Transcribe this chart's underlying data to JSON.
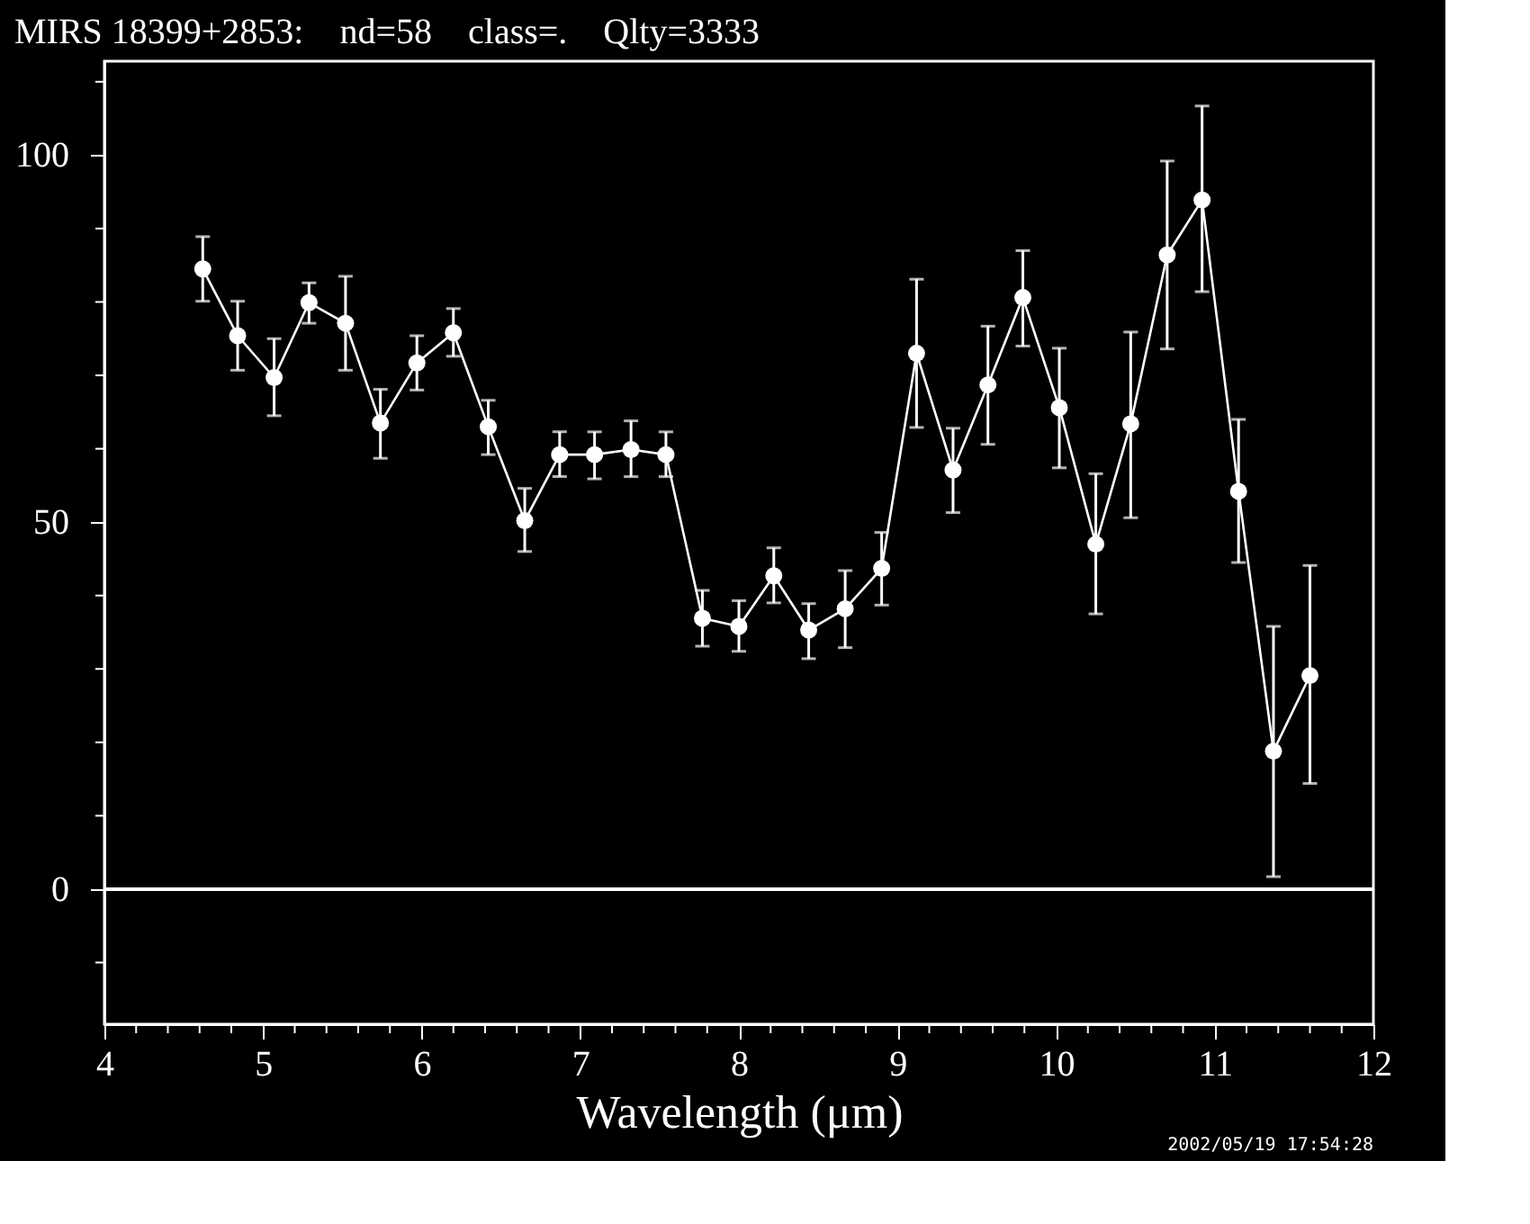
{
  "chart_data": {
    "type": "line",
    "title": "MIRS 18399+2853:    nd=58    class=.    Qlty=3333",
    "xlabel": "Wavelength (μm)",
    "x": [
      4.62,
      4.84,
      5.07,
      5.29,
      5.52,
      5.74,
      5.97,
      6.2,
      6.42,
      6.65,
      6.87,
      7.09,
      7.32,
      7.54,
      7.77,
      8.0,
      8.22,
      8.44,
      8.67,
      8.9,
      9.12,
      9.35,
      9.57,
      9.79,
      10.02,
      10.25,
      10.47,
      10.7,
      10.92,
      11.15,
      11.37,
      11.6
    ],
    "series": [
      {
        "color": "#ffffff",
        "values": [
          84.5,
          75.4,
          69.7,
          79.9,
          77.1,
          63.5,
          71.7,
          75.8,
          63.0,
          50.2,
          59.2,
          59.2,
          59.9,
          59.2,
          36.9,
          35.8,
          42.7,
          35.3,
          38.2,
          43.7,
          73.0,
          57.1,
          68.7,
          80.6,
          65.6,
          47.0,
          63.4,
          86.4,
          93.9,
          54.2,
          18.8,
          29.1
        ],
        "errors": [
          [
            80.1,
            88.9
          ],
          [
            70.7,
            80.1
          ],
          [
            64.5,
            75.0
          ],
          [
            77.1,
            82.6
          ],
          [
            70.7,
            83.5
          ],
          [
            58.7,
            68.1
          ],
          [
            68.0,
            75.4
          ],
          [
            72.6,
            79.1
          ],
          [
            59.2,
            66.6
          ],
          [
            46.0,
            54.6
          ],
          [
            56.2,
            62.3
          ],
          [
            55.9,
            62.3
          ],
          [
            56.2,
            63.8
          ],
          [
            56.2,
            62.3
          ],
          [
            33.1,
            40.7
          ],
          [
            32.4,
            39.3
          ],
          [
            39.0,
            46.5
          ],
          [
            31.4,
            38.9
          ],
          [
            32.9,
            43.4
          ],
          [
            38.7,
            48.6
          ],
          [
            62.9,
            83.1
          ],
          [
            51.3,
            62.8
          ],
          [
            60.6,
            76.7
          ],
          [
            74.0,
            87.0
          ],
          [
            57.4,
            73.7
          ],
          [
            37.5,
            56.6
          ],
          [
            50.6,
            75.9
          ],
          [
            73.6,
            99.2
          ],
          [
            81.4,
            106.7
          ],
          [
            44.5,
            64.0
          ],
          [
            1.7,
            35.8
          ],
          [
            14.4,
            44.1
          ]
        ]
      }
    ],
    "xlim": [
      4,
      12
    ],
    "ylim": [
      -18.4,
      112.8
    ],
    "xticks": [
      4,
      {
        "value": 4.2,
        "label": null
      },
      {
        "value": 4.4,
        "label": null
      },
      {
        "value": 4.6,
        "label": null
      },
      {
        "value": 4.8,
        "label": null
      },
      5,
      {
        "value": 5.2,
        "label": null
      },
      {
        "value": 5.4,
        "label": null
      },
      {
        "value": 5.6,
        "label": null
      },
      {
        "value": 5.8,
        "label": null
      },
      6,
      {
        "value": 6.2,
        "label": null
      },
      {
        "value": 6.4,
        "label": null
      },
      {
        "value": 6.6,
        "label": null
      },
      {
        "value": 6.8,
        "label": null
      },
      7,
      {
        "value": 7.2,
        "label": null
      },
      {
        "value": 7.4,
        "label": null
      },
      {
        "value": 7.6,
        "label": null
      },
      {
        "value": 7.8,
        "label": null
      },
      8,
      {
        "value": 8.2,
        "label": null
      },
      {
        "value": 8.4,
        "label": null
      },
      {
        "value": 8.6,
        "label": null
      },
      {
        "value": 8.8,
        "label": null
      },
      9,
      {
        "value": 9.2,
        "label": null
      },
      {
        "value": 9.4,
        "label": null
      },
      {
        "value": 9.6,
        "label": null
      },
      {
        "value": 9.8,
        "label": null
      },
      10,
      {
        "value": 10.2,
        "label": null
      },
      {
        "value": 10.4,
        "label": null
      },
      {
        "value": 10.6,
        "label": null
      },
      {
        "value": 10.8,
        "label": null
      },
      11,
      {
        "value": 11.2,
        "label": null
      },
      {
        "value": 11.4,
        "label": null
      },
      {
        "value": 11.6,
        "label": null
      },
      {
        "value": 11.8,
        "label": null
      },
      12
    ],
    "yticks": [
      {
        "value": -10,
        "label": null
      },
      0,
      {
        "value": 10,
        "label": null
      },
      {
        "value": 20,
        "label": null
      },
      {
        "value": 30,
        "label": null
      },
      {
        "value": 40,
        "label": null
      },
      50,
      {
        "value": 60,
        "label": null
      },
      {
        "value": 70,
        "label": null
      },
      {
        "value": 80,
        "label": null
      },
      {
        "value": 90,
        "label": null
      },
      100,
      {
        "value": 110,
        "label": null
      }
    ],
    "ref_lines": [
      {
        "axis": "y",
        "value": 0,
        "color": "#ffffff"
      }
    ],
    "marker": "circle",
    "line_style": "solid",
    "grid": false,
    "annotations": [
      "2002/05/19 17:54:28"
    ]
  }
}
